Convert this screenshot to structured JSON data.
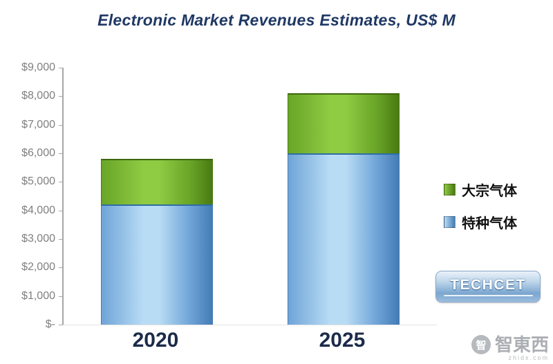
{
  "title": "Electronic Market Revenues Estimates, US$ M",
  "chart_data": {
    "type": "bar",
    "stacked": true,
    "title": "Electronic Market Revenues Estimates, US$ M",
    "categories": [
      "2020",
      "2025"
    ],
    "series": [
      {
        "key": "specialty-gas",
        "name": "特种气体",
        "values": [
          4200,
          6000
        ],
        "color": "#6fa4d8",
        "color_light": "#b9dcf5",
        "color_dark": "#447cb5",
        "color_edge": "#2e6da6"
      },
      {
        "key": "bulk-gas",
        "name": "大宗气体",
        "values": [
          1600,
          2100
        ],
        "color": "#69a527",
        "color_light": "#8fcb43",
        "color_dark": "#4a7a12",
        "color_edge": "#3c660d"
      }
    ],
    "totals": [
      5800,
      8100
    ],
    "xlabel": "",
    "ylabel": "",
    "ylim": [
      0,
      9000
    ],
    "ytick_step": 1000,
    "ytick_labels": [
      "$-",
      "$1,000",
      "$2,000",
      "$3,000",
      "$4,000",
      "$5,000",
      "$6,000",
      "$7,000",
      "$8,000",
      "$9,000"
    ],
    "grid": false,
    "legend_position": "right"
  },
  "legend": {
    "items": [
      {
        "label": "大宗气体",
        "color_light": "#8fcb43",
        "color_dark": "#4a7a12"
      },
      {
        "label": "特种气体",
        "color_light": "#b9dcf5",
        "color_dark": "#447cb5"
      }
    ]
  },
  "logo": {
    "text": "TECHCET"
  },
  "watermark": {
    "icon": "智",
    "text": "智東西",
    "subtext": "zhidx.com"
  }
}
